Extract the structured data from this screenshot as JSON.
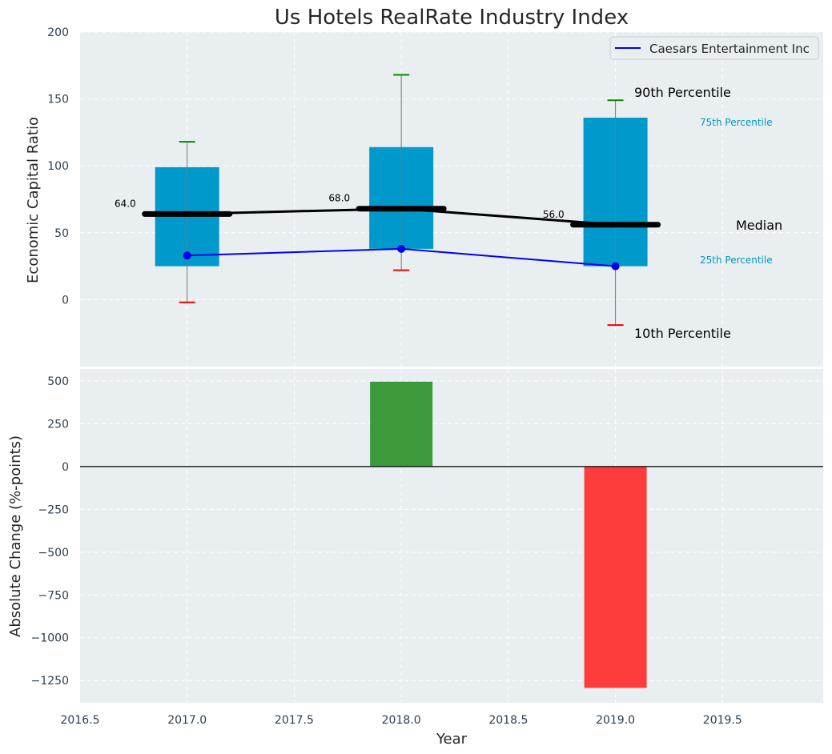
{
  "chart_data": [
    {
      "type": "box",
      "title": "Us Hotels RealRate Industry Index",
      "xlabel": "",
      "ylabel": "Economic Capital Ratio",
      "xlim": [
        2016.5,
        2019.97
      ],
      "ylim": [
        -50,
        200
      ],
      "yticks": [
        0,
        50,
        100,
        150,
        200
      ],
      "grid": true,
      "categories": [
        2017,
        2018,
        2019
      ],
      "percentiles": {
        "p10": [
          -2,
          22,
          -19
        ],
        "p25": [
          25,
          38,
          25
        ],
        "median": [
          64.0,
          68.0,
          56.0
        ],
        "p75": [
          99,
          114,
          136
        ],
        "p90": [
          118,
          168,
          149
        ]
      },
      "median_labels": [
        "64.0",
        "68.0",
        "56.0"
      ],
      "series": [
        {
          "name": "Caesars Entertainment Inc",
          "x": [
            2017,
            2018,
            2019
          ],
          "values": [
            33,
            38,
            25
          ],
          "color": "#0000ee"
        }
      ],
      "legend": {
        "position": "top-right",
        "entries": [
          "Caesars Entertainment Inc"
        ]
      },
      "annotations": {
        "p90": "90th Percentile",
        "p75": "75th Percentile",
        "median": "Median",
        "p25": "25th Percentile",
        "p10": "10th Percentile"
      }
    },
    {
      "type": "bar",
      "xlabel": "Year",
      "ylabel": "Absolute Change (%-points)",
      "xlim": [
        2016.5,
        2019.97
      ],
      "ylim": [
        -1380,
        570
      ],
      "yticks": [
        500,
        250,
        0,
        -250,
        -500,
        -750,
        -1000,
        -1250
      ],
      "xticks": [
        2016.5,
        2017.0,
        2017.5,
        2018.0,
        2018.5,
        2019.0,
        2019.5
      ],
      "x": [
        2018,
        2019
      ],
      "values": [
        496,
        -1293
      ],
      "grid": true
    }
  ],
  "colors": {
    "background": "#e9eef0",
    "box": "#0099cc",
    "percentile_text": "#0099bb",
    "whisker_high": "#008800",
    "whisker_low": "#ee0000",
    "median": "#000000",
    "positive_bar": "#3c9a3c",
    "negative_bar": "#ff3c3c",
    "axis_text": "#2c3e50"
  }
}
